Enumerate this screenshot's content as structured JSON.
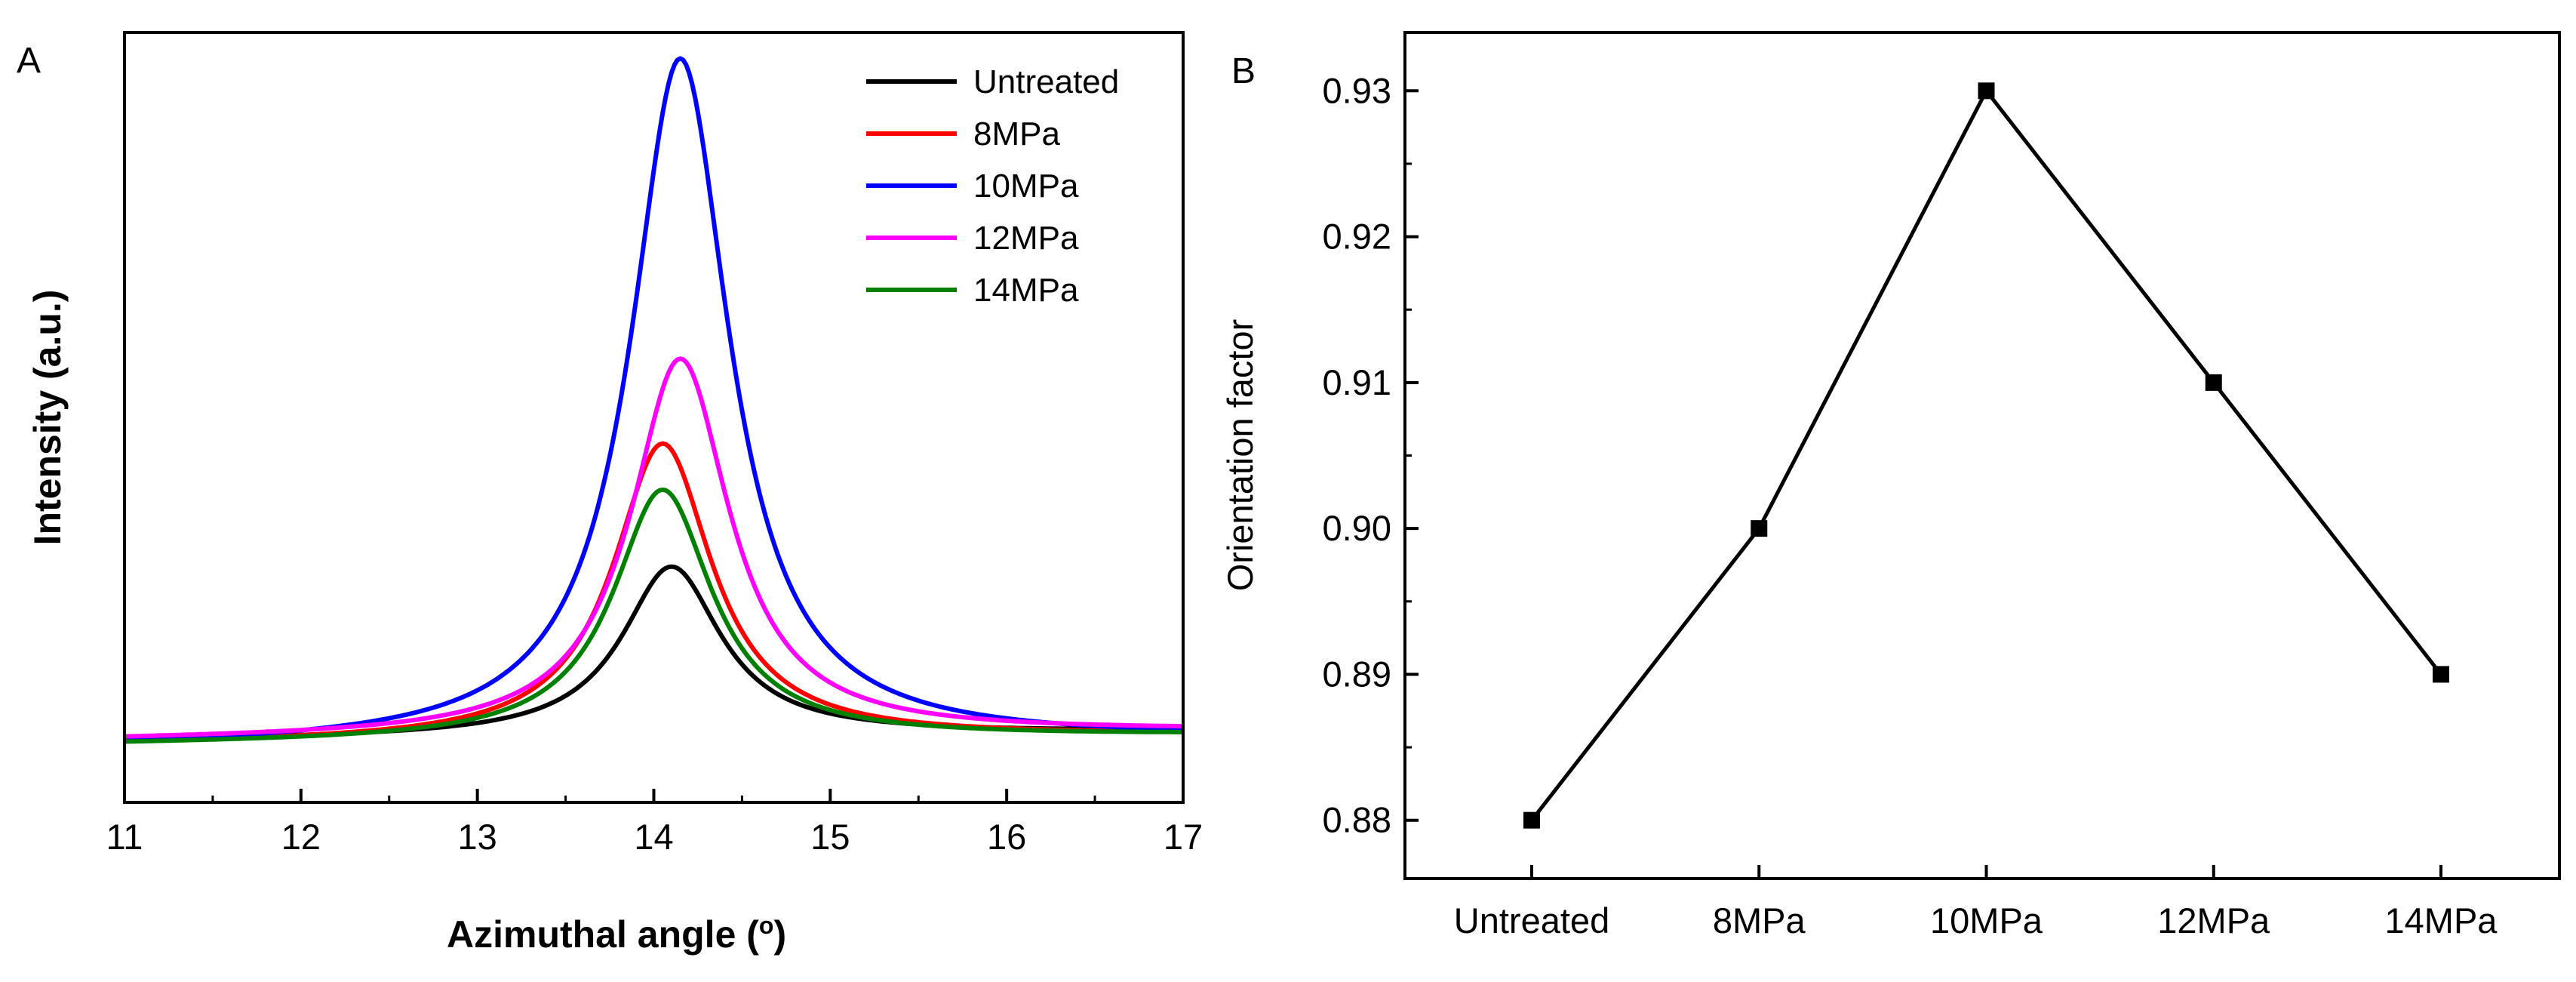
{
  "chart_data": [
    {
      "panel": "A",
      "type": "line",
      "title": "",
      "xlabel": "Azimuthal angle (",
      "xlabel_superscript": "o",
      "xlabel_suffix": ")",
      "ylabel": "Intensity (a.u.)",
      "xlim": [
        11,
        17
      ],
      "ylim": [
        0,
        100
      ],
      "xticks": [
        11,
        12,
        13,
        14,
        15,
        16,
        17
      ],
      "legend_position": "top-right",
      "series": [
        {
          "name": "Untreated",
          "color": "#000000",
          "peak_x": 14.1,
          "peak": 30,
          "baseline": 8.0,
          "width": 0.34
        },
        {
          "name": "8MPa",
          "color": "#ff0000",
          "peak_x": 14.05,
          "peak": 46,
          "baseline": 7.5,
          "width": 0.34
        },
        {
          "name": "10MPa",
          "color": "#0000ff",
          "peak_x": 14.15,
          "peak": 96,
          "baseline": 7.0,
          "width": 0.34
        },
        {
          "name": "12MPa",
          "color": "#ff00ff",
          "peak_x": 14.15,
          "peak": 57,
          "baseline": 8.0,
          "width": 0.34
        },
        {
          "name": "14MPa",
          "color": "#008000",
          "peak_x": 14.05,
          "peak": 40,
          "baseline": 7.5,
          "width": 0.34
        }
      ]
    },
    {
      "panel": "B",
      "type": "line",
      "title": "",
      "xlabel": "",
      "ylabel": "Orientation factor",
      "categories": [
        "Untreated",
        "8MPa",
        "10MPa",
        "12MPa",
        "14MPa"
      ],
      "values": [
        0.88,
        0.9,
        0.93,
        0.91,
        0.89
      ],
      "ylim": [
        0.876,
        0.934
      ],
      "yticks": [
        "0.88",
        "0.89",
        "0.90",
        "0.91",
        "0.92",
        "0.93"
      ],
      "marker": "square",
      "color": "#000000"
    }
  ]
}
